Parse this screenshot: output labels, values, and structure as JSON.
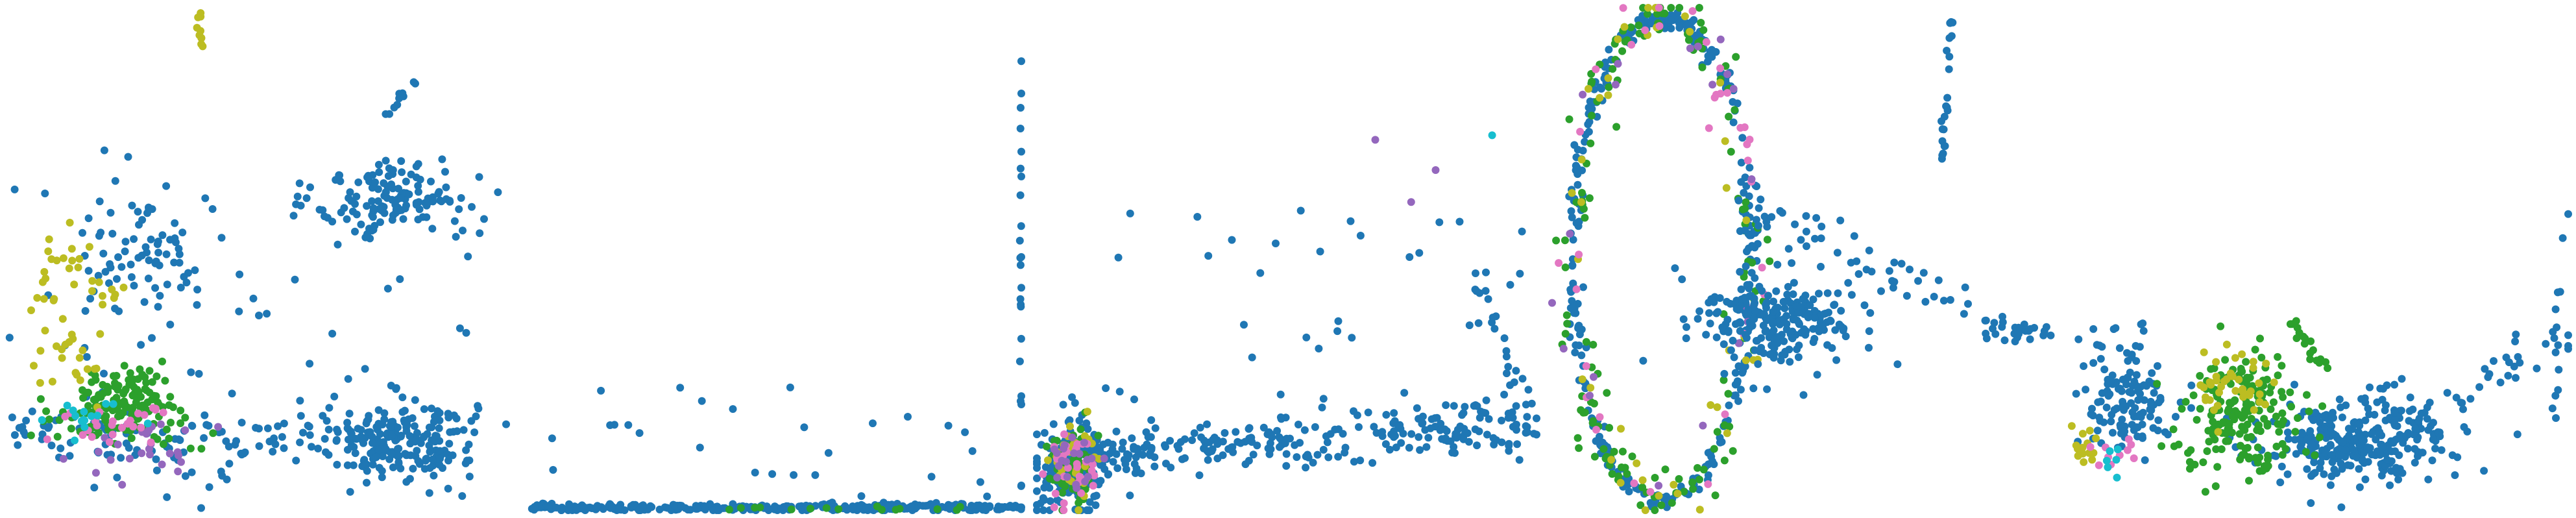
{
  "colors": {
    "blue": "#1f77b4",
    "green": "#2ca02c",
    "olive": "#bcbd22",
    "purple": "#9467bd",
    "pink": "#e377c2",
    "cyan": "#17becf"
  },
  "chart_data": [
    {
      "type": "scatter",
      "title": "",
      "xlabel": "",
      "ylabel": "",
      "axes": "hidden",
      "grid": false,
      "legend": "none",
      "xlim": [
        0,
        100
      ],
      "ylim": [
        0,
        100
      ],
      "clusters": [
        {
          "color": "blue",
          "shape": "blob",
          "cx": 78,
          "cy": 14,
          "sx": 8,
          "sy": 4,
          "n": 220
        },
        {
          "color": "blue",
          "shape": "blob",
          "cx": 78,
          "cy": 62,
          "sx": 8,
          "sy": 4,
          "n": 130
        },
        {
          "color": "blue",
          "shape": "blob",
          "cx": 28,
          "cy": 52,
          "sx": 8,
          "sy": 7,
          "n": 70
        },
        {
          "color": "blue",
          "shape": "line",
          "x0": 2,
          "y0": 15,
          "x1": 60,
          "y1": 13,
          "spread": 3,
          "n": 90
        },
        {
          "color": "blue",
          "shape": "line",
          "x0": 75,
          "y0": 78,
          "x1": 82,
          "y1": 86,
          "spread": 0.5,
          "n": 10
        },
        {
          "color": "blue",
          "shape": "scatter",
          "xmin": 0,
          "xmax": 95,
          "ymin": 0,
          "ymax": 65,
          "n": 80
        },
        {
          "color": "green",
          "shape": "blob",
          "cx": 24,
          "cy": 22,
          "sx": 5,
          "sy": 3,
          "n": 120
        },
        {
          "color": "green",
          "shape": "line",
          "x0": 5,
          "y0": 18,
          "x1": 40,
          "y1": 14,
          "spread": 1.5,
          "n": 30
        },
        {
          "color": "olive",
          "shape": "line",
          "x0": 38,
          "y0": 100,
          "x1": 39,
          "y1": 92,
          "spread": 0.3,
          "n": 10
        },
        {
          "color": "olive",
          "shape": "blob",
          "cx": 12,
          "cy": 36,
          "sx": 5,
          "sy": 8,
          "n": 35
        },
        {
          "color": "olive",
          "shape": "line",
          "x0": 10,
          "y0": 52,
          "x1": 22,
          "y1": 42,
          "spread": 1.5,
          "n": 18
        },
        {
          "color": "purple",
          "shape": "blob",
          "cx": 28,
          "cy": 12,
          "sx": 6,
          "sy": 3,
          "n": 25
        },
        {
          "color": "pink",
          "shape": "blob",
          "cx": 22,
          "cy": 18,
          "sx": 6,
          "sy": 3,
          "n": 25
        },
        {
          "color": "cyan",
          "shape": "blob",
          "cx": 14,
          "cy": 18,
          "sx": 5,
          "sy": 2,
          "n": 15
        }
      ]
    },
    {
      "type": "scatter",
      "title": "",
      "xlabel": "",
      "ylabel": "",
      "axes": "hidden",
      "grid": false,
      "legend": "none",
      "xlim": [
        0,
        100
      ],
      "ylim": [
        0,
        100
      ],
      "clusters": [
        {
          "color": "blue",
          "shape": "line",
          "x0": 2,
          "y0": 0.5,
          "x1": 100,
          "y1": 0.5,
          "spread": 0.4,
          "n": 320
        },
        {
          "color": "blue",
          "shape": "line",
          "x0": 100,
          "y0": 0.5,
          "x1": 100,
          "y1": 90,
          "spread": 0.2,
          "n": 25
        },
        {
          "color": "blue",
          "shape": "scatter",
          "xmin": 5,
          "xmax": 98,
          "ymin": 0,
          "ymax": 30,
          "n": 30
        },
        {
          "color": "green",
          "shape": "line",
          "x0": 40,
          "y0": 0.3,
          "x1": 90,
          "y1": 0.3,
          "spread": 0.2,
          "n": 15
        }
      ]
    },
    {
      "type": "scatter",
      "title": "",
      "xlabel": "",
      "ylabel": "",
      "axes": "hidden",
      "grid": false,
      "legend": "none",
      "xlim": [
        0,
        100
      ],
      "ylim": [
        0,
        100
      ],
      "clusters": [
        {
          "color": "blue",
          "shape": "blob",
          "cx": 7,
          "cy": 9,
          "sx": 3.5,
          "sy": 5,
          "n": 180
        },
        {
          "color": "blue",
          "shape": "line",
          "x0": 10,
          "y0": 11,
          "x1": 100,
          "y1": 17,
          "spread": 2.5,
          "n": 260
        },
        {
          "color": "blue",
          "shape": "scatter",
          "xmin": 10,
          "xmax": 100,
          "ymin": 15,
          "ymax": 60,
          "n": 40
        },
        {
          "color": "blue",
          "shape": "line",
          "x0": 88,
          "y0": 45,
          "x1": 98,
          "y1": 22,
          "spread": 1,
          "n": 20
        },
        {
          "color": "green",
          "shape": "blob",
          "cx": 7,
          "cy": 9,
          "sx": 2.5,
          "sy": 4,
          "n": 70
        },
        {
          "color": "olive",
          "shape": "blob",
          "cx": 7,
          "cy": 9,
          "sx": 2.5,
          "sy": 4,
          "n": 30
        },
        {
          "color": "pink",
          "shape": "blob",
          "cx": 7,
          "cy": 9,
          "sx": 2.5,
          "sy": 4,
          "n": 30
        },
        {
          "color": "purple",
          "shape": "blob",
          "cx": 7,
          "cy": 9,
          "sx": 2.5,
          "sy": 4,
          "n": 20
        },
        {
          "color": "purple",
          "shape": "scatter",
          "xmin": 60,
          "xmax": 85,
          "ymin": 12,
          "ymax": 80,
          "n": 3
        },
        {
          "color": "cyan",
          "shape": "scatter",
          "xmin": 88,
          "xmax": 92,
          "ymin": 70,
          "ymax": 75,
          "n": 1
        }
      ]
    },
    {
      "type": "scatter",
      "title": "",
      "xlabel": "",
      "ylabel": "",
      "axes": "hidden",
      "grid": false,
      "legend": "none",
      "xlim": [
        0,
        100
      ],
      "ylim": [
        0,
        100
      ],
      "clusters": [
        {
          "color": "blue",
          "shape": "ring",
          "cx": 22,
          "cy": 50,
          "rx": 18,
          "ry": 48,
          "spread": 0.8,
          "n": 320
        },
        {
          "color": "green",
          "shape": "ring",
          "cx": 22,
          "cy": 50,
          "rx": 18,
          "ry": 48,
          "spread": 2.2,
          "n": 150
        },
        {
          "color": "olive",
          "shape": "ring",
          "cx": 22,
          "cy": 50,
          "rx": 18,
          "ry": 48,
          "spread": 2.2,
          "n": 40
        },
        {
          "color": "pink",
          "shape": "ring",
          "cx": 22,
          "cy": 50,
          "rx": 18,
          "ry": 48,
          "spread": 2.2,
          "n": 35
        },
        {
          "color": "purple",
          "shape": "ring",
          "cx": 22,
          "cy": 50,
          "rx": 18,
          "ry": 48,
          "spread": 2.2,
          "n": 20
        },
        {
          "color": "blue",
          "shape": "blob",
          "cx": 45,
          "cy": 38,
          "sx": 8,
          "sy": 5,
          "n": 230
        },
        {
          "color": "blue",
          "shape": "line",
          "x0": 38,
          "y0": 60,
          "x1": 95,
          "y1": 36,
          "spread": 2,
          "n": 60
        },
        {
          "color": "blue",
          "shape": "line",
          "x0": 78,
          "y0": 68,
          "x1": 80,
          "y1": 98,
          "spread": 0.4,
          "n": 22
        },
        {
          "color": "blue",
          "shape": "line",
          "x0": 86,
          "y0": 36,
          "x1": 100,
          "y1": 35,
          "spread": 1,
          "n": 20
        }
      ]
    },
    {
      "type": "scatter",
      "title": "",
      "xlabel": "",
      "ylabel": "",
      "axes": "hidden",
      "grid": false,
      "legend": "none",
      "xlim": [
        0,
        100
      ],
      "ylim": [
        0,
        100
      ],
      "clusters": [
        {
          "color": "blue",
          "shape": "blob",
          "cx": 58,
          "cy": 14,
          "sx": 9,
          "sy": 4.5,
          "n": 300
        },
        {
          "color": "blue",
          "shape": "blob",
          "cx": 12,
          "cy": 22,
          "sx": 5,
          "sy": 6,
          "n": 130
        },
        {
          "color": "blue",
          "shape": "line",
          "x0": 68,
          "y0": 16,
          "x1": 100,
          "y1": 35,
          "spread": 2,
          "n": 35
        },
        {
          "color": "blue",
          "shape": "line",
          "x0": 97,
          "y0": 14,
          "x1": 100,
          "y1": 62,
          "spread": 0.5,
          "n": 12
        },
        {
          "color": "green",
          "shape": "blob",
          "cx": 35,
          "cy": 20,
          "sx": 6,
          "sy": 6,
          "n": 190
        },
        {
          "color": "green",
          "shape": "line",
          "x0": 44,
          "y0": 38,
          "x1": 52,
          "y1": 28,
          "spread": 0.6,
          "n": 18
        },
        {
          "color": "olive",
          "shape": "blob",
          "cx": 34,
          "cy": 25,
          "sx": 4,
          "sy": 5,
          "n": 40
        },
        {
          "color": "olive",
          "shape": "blob",
          "cx": 4,
          "cy": 13,
          "sx": 1.2,
          "sy": 2,
          "n": 14
        },
        {
          "color": "pink",
          "shape": "blob",
          "cx": 10,
          "cy": 12,
          "sx": 2,
          "sy": 2,
          "n": 10
        },
        {
          "color": "cyan",
          "shape": "blob",
          "cx": 10,
          "cy": 10,
          "sx": 1.5,
          "sy": 1.5,
          "n": 6
        }
      ]
    }
  ]
}
